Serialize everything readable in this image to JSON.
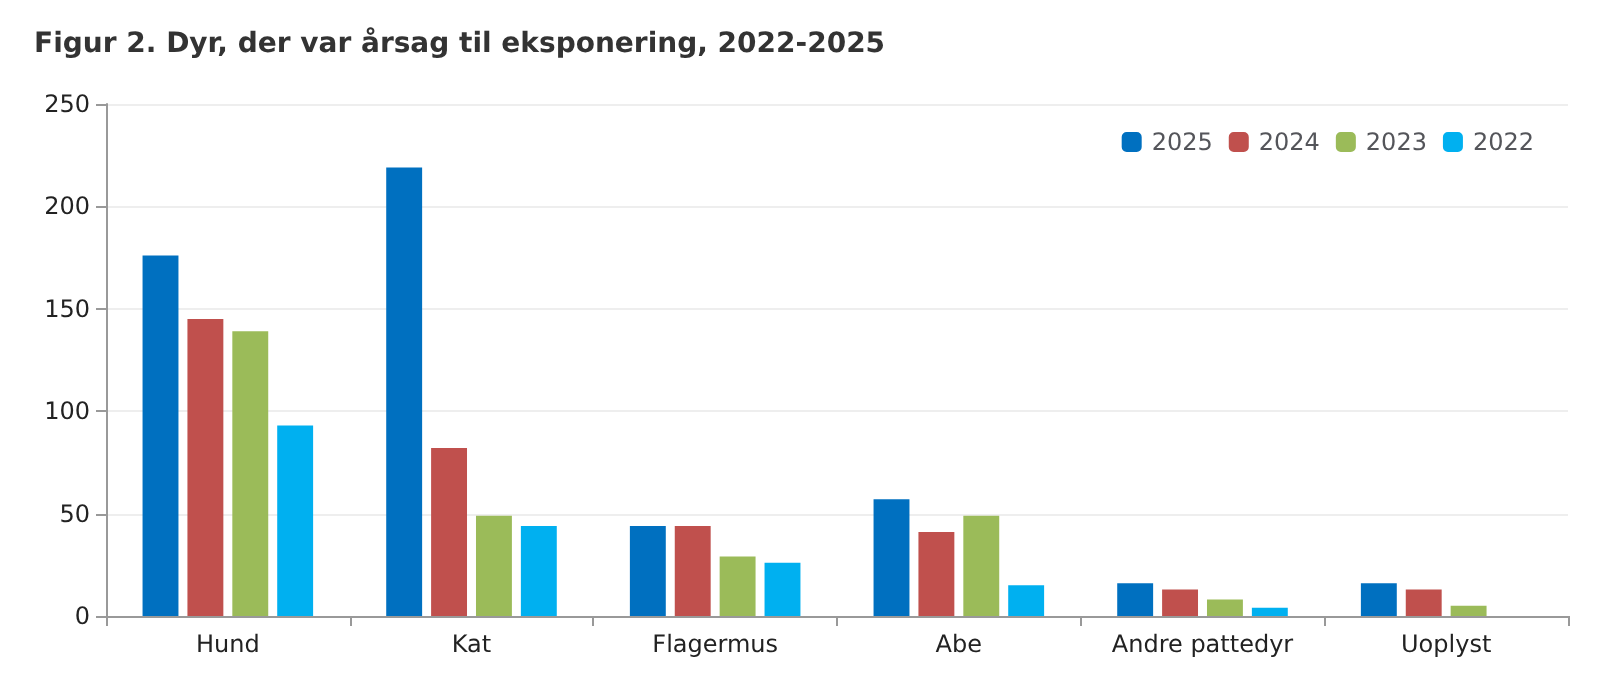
{
  "chart_data": {
    "type": "bar",
    "title": "Figur 2. Dyr, der var årsag til eksponering, 2022-2025",
    "categories": [
      "Hund",
      "Kat",
      "Flagermus",
      "Abe",
      "Andre pattedyr",
      "Uoplyst"
    ],
    "series": [
      {
        "name": "2025",
        "color": "#0070c0",
        "values": [
          176,
          219,
          44,
          57,
          16,
          16
        ]
      },
      {
        "name": "2024",
        "color": "#c0504d",
        "values": [
          145,
          82,
          44,
          41,
          13,
          13
        ]
      },
      {
        "name": "2023",
        "color": "#9bbb59",
        "values": [
          139,
          49,
          29,
          49,
          8,
          5
        ]
      },
      {
        "name": "2022",
        "color": "#00b0f0",
        "values": [
          93,
          44,
          26,
          15,
          4,
          0
        ]
      }
    ],
    "ylim": [
      0,
      250
    ],
    "yticks": [
      0,
      50,
      100,
      150,
      200,
      250
    ],
    "grid": "y",
    "legend": "top right"
  }
}
